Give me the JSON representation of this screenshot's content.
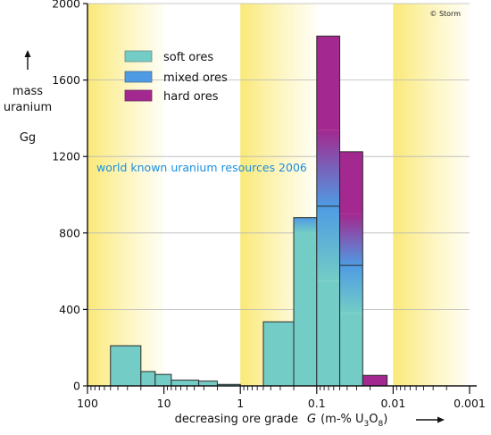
{
  "credit": "© Storm",
  "colors": {
    "soft": "#73cdc6",
    "mixed": "#4f9be3",
    "hard": "#a3288f",
    "band": "#fae978",
    "annotation": "#1a8fe0"
  },
  "chart_data": {
    "type": "bar",
    "ylabel": [
      "mass",
      "uranium",
      "Gg"
    ],
    "xlabel": {
      "text": "decreasing ore grade",
      "symbol": "G",
      "unit_open": "(m-% U",
      "sub1": "3",
      "mid": "O",
      "sub2": "8",
      "unit_close": ")"
    },
    "annotation": "world known uranium resources 2006",
    "x_scale": "log (decreasing)",
    "xlim": [
      100,
      0.001
    ],
    "x_ticks": [
      "100",
      "10",
      "1",
      "0.1",
      "0.01",
      "0.001"
    ],
    "x_tick_values": [
      100,
      10,
      1,
      0.1,
      0.01,
      0.001
    ],
    "ylim": [
      0,
      2000
    ],
    "y_ticks": [
      0,
      400,
      800,
      1200,
      1600,
      2000
    ],
    "grid": true,
    "legend": {
      "position": "top-left",
      "entries": [
        {
          "label": "soft ores",
          "key": "soft"
        },
        {
          "label": "mixed ores",
          "key": "mixed"
        },
        {
          "label": "hard ores",
          "key": "hard"
        }
      ]
    },
    "bars": [
      {
        "grade_from": 50,
        "grade_to": 20,
        "values": [
          {
            "key": "soft",
            "to": 210
          }
        ]
      },
      {
        "grade_from": 20,
        "grade_to": 13,
        "values": [
          {
            "key": "soft",
            "to": 75
          }
        ]
      },
      {
        "grade_from": 13,
        "grade_to": 8,
        "values": [
          {
            "key": "soft",
            "to": 60
          }
        ]
      },
      {
        "grade_from": 8,
        "grade_to": 3.5,
        "values": [
          {
            "key": "soft",
            "to": 30
          }
        ]
      },
      {
        "grade_from": 3.5,
        "grade_to": 2,
        "values": [
          {
            "key": "soft",
            "to": 25
          }
        ]
      },
      {
        "grade_from": 2,
        "grade_to": 1,
        "values": [
          {
            "key": "soft",
            "to": 8
          }
        ]
      },
      {
        "grade_from": 0.5,
        "grade_to": 0.2,
        "values": [
          {
            "key": "soft",
            "to": 335
          }
        ]
      },
      {
        "grade_from": 0.2,
        "grade_to": 0.1,
        "values": [
          {
            "key": "soft",
            "to": 800
          },
          {
            "key": "mixed",
            "to": 880
          }
        ]
      },
      {
        "grade_from": 0.1,
        "grade_to": 0.05,
        "values": [
          {
            "key": "soft",
            "to": 550
          },
          {
            "key": "mixed",
            "to": 940
          },
          {
            "key": "hard",
            "to": 1830
          }
        ]
      },
      {
        "grade_from": 0.05,
        "grade_to": 0.025,
        "values": [
          {
            "key": "soft",
            "to": 380
          },
          {
            "key": "mixed",
            "to": 630
          },
          {
            "key": "hard",
            "to": 1225
          }
        ]
      },
      {
        "grade_from": 0.025,
        "grade_to": 0.012,
        "values": [
          {
            "key": "hard",
            "to": 55
          }
        ]
      }
    ]
  }
}
